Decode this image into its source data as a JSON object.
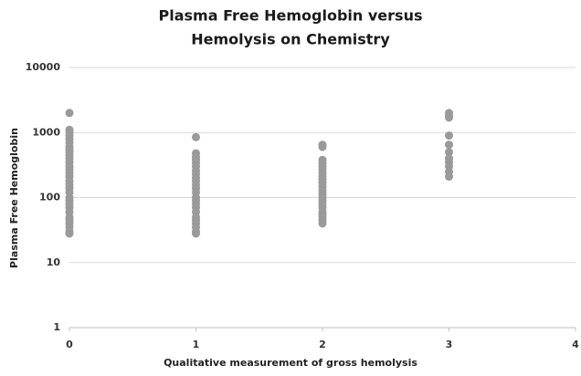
{
  "chart_data": {
    "type": "scatter",
    "title": [
      "Plasma Free Hemoglobin versus",
      "Hemolysis on Chemistry"
    ],
    "x_label": "Qualitative measurement of gross hemolysis",
    "y_label": "Plasma Free Hemoglobin",
    "xlim": [
      0,
      4
    ],
    "xticks": [
      0,
      1,
      2,
      3,
      4
    ],
    "ylim": [
      1,
      10000
    ],
    "yticks": [
      1,
      10,
      100,
      1000,
      10000
    ],
    "log_y": true,
    "grid": true,
    "series": [
      {
        "color": "#9a9a9a",
        "x": [
          0,
          0,
          0,
          0,
          0,
          0,
          0,
          0,
          0,
          0,
          0,
          0,
          0,
          0,
          0,
          0,
          0,
          0,
          0,
          0,
          0,
          0,
          0,
          0,
          0,
          0,
          0,
          0,
          0,
          0,
          0,
          1,
          1,
          1,
          1,
          1,
          1,
          1,
          1,
          1,
          1,
          1,
          1,
          1,
          1,
          1,
          1,
          1,
          1,
          1,
          1,
          1,
          1,
          1,
          1,
          2,
          2,
          2,
          2,
          2,
          2,
          2,
          2,
          2,
          2,
          2,
          2,
          2,
          2,
          2,
          2,
          2,
          2,
          2,
          2,
          2,
          2,
          3,
          3,
          3,
          3,
          3,
          3,
          3,
          3,
          3,
          3,
          3
        ],
        "values": [
          2000,
          1100,
          1000,
          900,
          800,
          700,
          600,
          550,
          500,
          450,
          400,
          350,
          300,
          270,
          240,
          210,
          180,
          160,
          140,
          120,
          100,
          90,
          80,
          70,
          60,
          50,
          45,
          40,
          35,
          30,
          28,
          850,
          480,
          420,
          380,
          340,
          300,
          260,
          230,
          200,
          180,
          160,
          140,
          120,
          100,
          90,
          80,
          70,
          60,
          50,
          45,
          40,
          35,
          30,
          28,
          650,
          600,
          380,
          340,
          300,
          270,
          240,
          210,
          190,
          170,
          150,
          130,
          115,
          100,
          90,
          80,
          70,
          60,
          55,
          50,
          45,
          40,
          2000,
          1800,
          1700,
          900,
          650,
          500,
          400,
          350,
          300,
          250,
          210
        ]
      }
    ]
  }
}
